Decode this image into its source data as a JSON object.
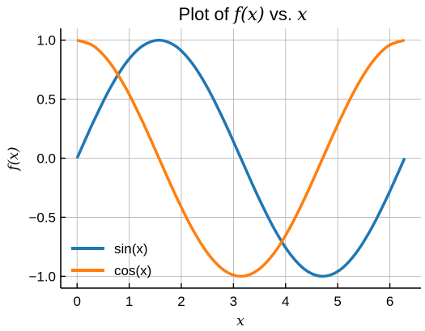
{
  "chart_data": {
    "type": "line",
    "title": {
      "prefix": "Plot of ",
      "math1": "f(x)",
      "middle": " vs. ",
      "math2": "x"
    },
    "xlabel": "x",
    "ylabel": "f(x)",
    "xlim": [
      -0.314,
      6.597
    ],
    "ylim": [
      -1.1,
      1.1
    ],
    "xticks": [
      0,
      1,
      2,
      3,
      4,
      5,
      6
    ],
    "xtick_labels": [
      "0",
      "1",
      "2",
      "3",
      "4",
      "5",
      "6"
    ],
    "yticks": [
      -1.0,
      -0.5,
      0.0,
      0.5,
      1.0
    ],
    "ytick_labels": [
      "−1.0",
      "−0.5",
      "0.0",
      "0.5",
      "1.0"
    ],
    "grid": true,
    "legend_position": "lower-left",
    "series": [
      {
        "name": "sin(x)",
        "color": "#1f77b4",
        "x": [
          0.0,
          0.314,
          0.628,
          0.942,
          1.257,
          1.571,
          1.885,
          2.199,
          2.513,
          2.827,
          3.142,
          3.456,
          3.77,
          4.084,
          4.398,
          4.712,
          5.027,
          5.341,
          5.655,
          5.969,
          6.283
        ],
        "y": [
          0.0,
          0.309,
          0.588,
          0.809,
          0.951,
          1.0,
          0.951,
          0.809,
          0.588,
          0.309,
          0.0,
          -0.309,
          -0.588,
          -0.809,
          -0.951,
          -1.0,
          -0.951,
          -0.809,
          -0.588,
          -0.309,
          0.0
        ]
      },
      {
        "name": "cos(x)",
        "color": "#ff7f0e",
        "x": [
          0.0,
          0.314,
          0.628,
          0.942,
          1.257,
          1.571,
          1.885,
          2.199,
          2.513,
          2.827,
          3.142,
          3.456,
          3.77,
          4.084,
          4.398,
          4.712,
          5.027,
          5.341,
          5.655,
          5.969,
          6.283
        ],
        "y": [
          1.0,
          0.951,
          0.809,
          0.588,
          0.309,
          0.0,
          -0.309,
          -0.588,
          -0.809,
          -0.951,
          -1.0,
          -0.951,
          -0.809,
          -0.588,
          -0.309,
          0.0,
          0.309,
          0.588,
          0.809,
          0.951,
          1.0
        ]
      }
    ]
  }
}
